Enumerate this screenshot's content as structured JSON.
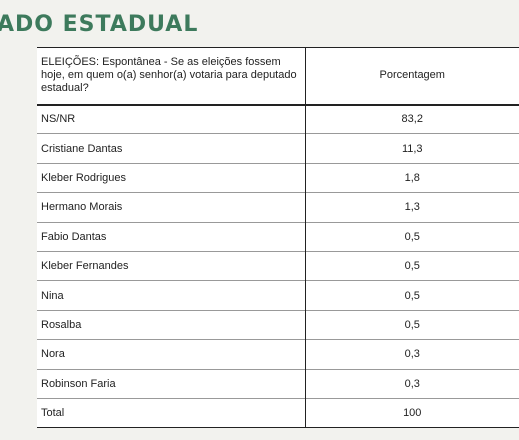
{
  "page_title": "ADO ESTADUAL",
  "table": {
    "header_question": "ELEIÇÕES: Espontânea - Se as eleições fossem hoje, em quem o(a) senhor(a) votaria para deputado estadual?",
    "header_value": "Porcentagem",
    "rows": [
      {
        "name": "NS/NR",
        "value": "83,2"
      },
      {
        "name": "Cristiane Dantas",
        "value": "11,3"
      },
      {
        "name": "Kleber Rodrigues",
        "value": "1,8"
      },
      {
        "name": "Hermano Morais",
        "value": "1,3"
      },
      {
        "name": "Fabio Dantas",
        "value": "0,5"
      },
      {
        "name": "Kleber Fernandes",
        "value": "0,5"
      },
      {
        "name": "Nina",
        "value": "0,5"
      },
      {
        "name": "Rosalba",
        "value": "0,5"
      },
      {
        "name": "Nora",
        "value": "0,3"
      },
      {
        "name": "Robinson Faria",
        "value": "0,3"
      },
      {
        "name": "Total",
        "value": "100"
      }
    ]
  },
  "colors": {
    "title": "#3d7a5c",
    "background": "#f2f2ee"
  }
}
